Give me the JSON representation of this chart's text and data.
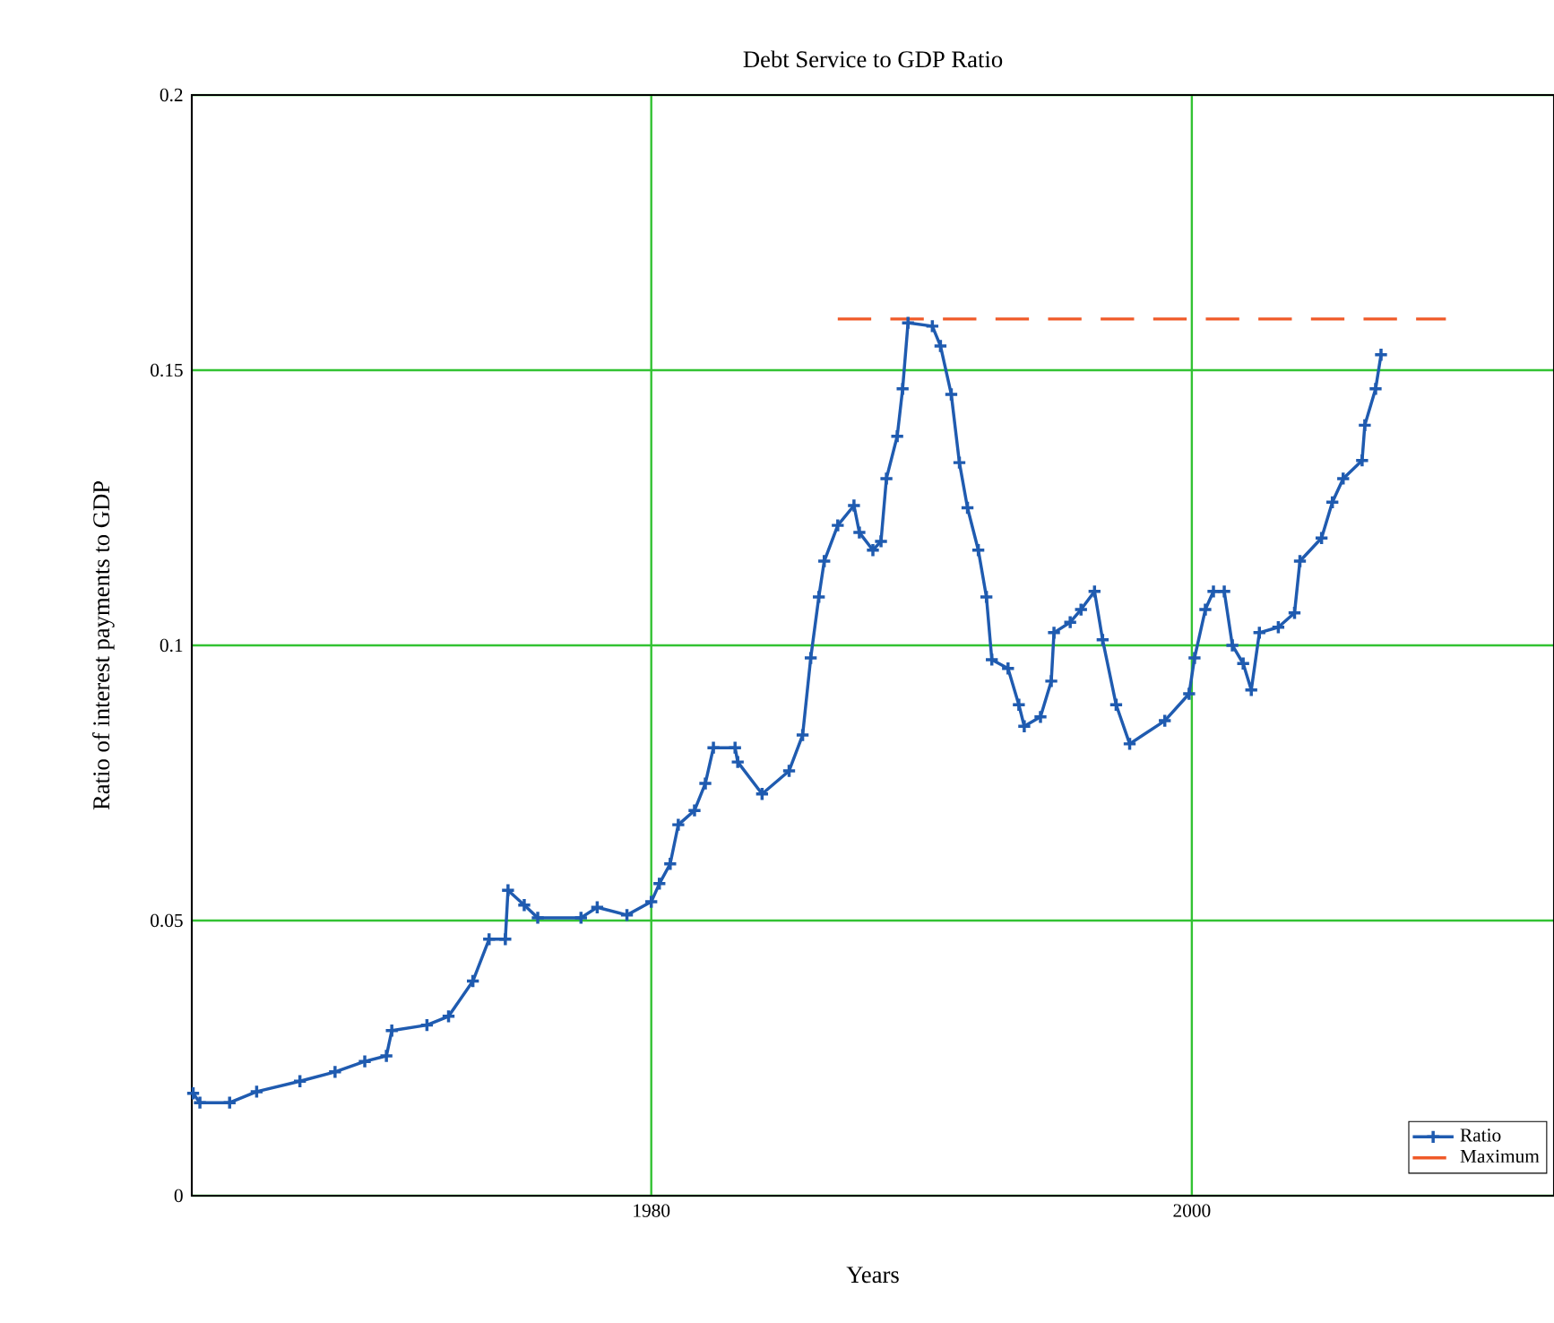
{
  "chart_data": {
    "type": "line",
    "title": "Debt Service to GDP Ratio",
    "xlabel": "Years",
    "ylabel": "Ratio of interest payments to GDP",
    "xlim": [
      1963,
      2013.4
    ],
    "ylim": [
      0,
      0.2
    ],
    "xticks": [
      1980,
      2000
    ],
    "yticks": [
      0,
      0.05,
      0.1,
      0.15,
      0.2
    ],
    "grid": true,
    "legend": "bottom right",
    "series": [
      {
        "name": "Ratio",
        "color": "#1f5bb0",
        "marker": "cross",
        "line_style": "solid",
        "x": [
          1963.05,
          1963.3,
          1964.4,
          1965.4,
          1967.0,
          1968.3,
          1969.4,
          1970.2,
          1970.4,
          1971.7,
          1972.5,
          1973.4,
          1974.0,
          1974.6,
          1974.7,
          1975.3,
          1975.8,
          1977.4,
          1978.0,
          1979.1,
          1980.0,
          1980.3,
          1980.7,
          1981.0,
          1981.6,
          1982.0,
          1982.3,
          1983.1,
          1983.2,
          1984.1,
          1985.1,
          1985.6,
          1985.9,
          1986.2,
          1986.4,
          1986.9,
          1987.5,
          1987.7,
          1988.2,
          1988.5,
          1988.7,
          1989.1,
          1989.3,
          1989.5,
          1990.4,
          1990.7,
          1991.1,
          1991.4,
          1991.7,
          1992.1,
          1992.4,
          1992.6,
          1993.2,
          1993.6,
          1993.8,
          1994.4,
          1994.8,
          1994.9,
          1995.5,
          1995.9,
          1996.4,
          1996.7,
          1997.2,
          1997.7,
          1999.0,
          1999.9,
          2000.1,
          2000.5,
          2000.8,
          2001.2,
          2001.5,
          2001.9,
          2002.2,
          2002.5,
          2003.2,
          2003.8,
          2004.0,
          2004.8,
          2005.2,
          2005.6,
          2006.3,
          2006.4,
          2006.8,
          2007.0
        ],
        "values": [
          0.0186,
          0.0169,
          0.0169,
          0.0189,
          0.0208,
          0.0225,
          0.0244,
          0.0254,
          0.03,
          0.031,
          0.0326,
          0.039,
          0.0466,
          0.0466,
          0.0555,
          0.0528,
          0.0505,
          0.0505,
          0.0524,
          0.051,
          0.0534,
          0.0567,
          0.0603,
          0.0674,
          0.07,
          0.0749,
          0.0814,
          0.0814,
          0.0788,
          0.073,
          0.0772,
          0.0837,
          0.0977,
          0.1088,
          0.1153,
          0.1218,
          0.1254,
          0.1205,
          0.1173,
          0.1189,
          0.1303,
          0.138,
          0.1466,
          0.1586,
          0.158,
          0.1544,
          0.1456,
          0.1332,
          0.125,
          0.1173,
          0.1088,
          0.0974,
          0.0958,
          0.0892,
          0.0853,
          0.087,
          0.0935,
          0.1023,
          0.1042,
          0.1065,
          0.1098,
          0.101,
          0.0892,
          0.0821,
          0.0863,
          0.0912,
          0.0977,
          0.1065,
          0.1098,
          0.1098,
          0.1,
          0.0967,
          0.0919,
          0.1023,
          0.1033,
          0.1059,
          0.1153,
          0.1195,
          0.126,
          0.1303,
          0.1336,
          0.14,
          0.1466,
          0.1528
        ]
      },
      {
        "name": "Maximum",
        "color": "#f05a28",
        "marker": "none",
        "line_style": "dashed",
        "x": [
          1986.9,
          2009.4
        ],
        "values": [
          0.1593,
          0.1593
        ]
      }
    ]
  }
}
